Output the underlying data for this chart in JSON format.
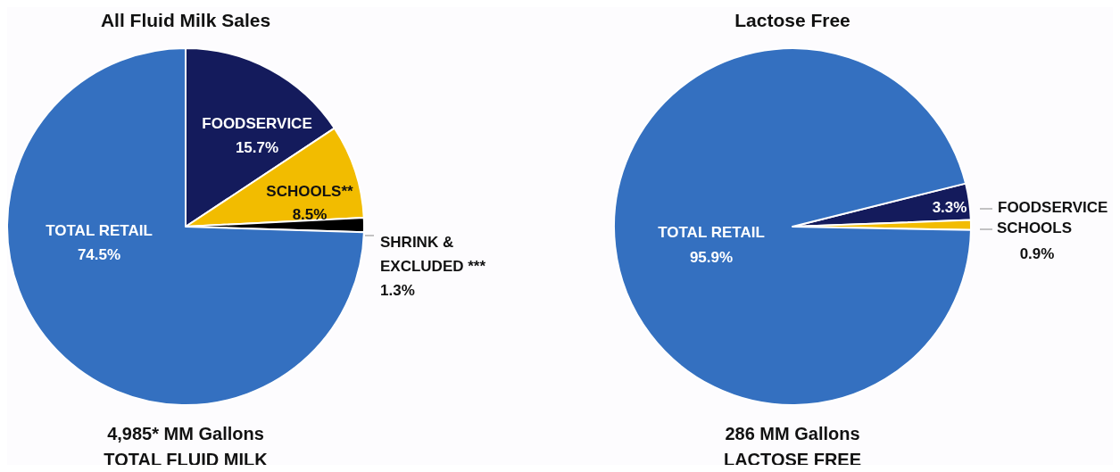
{
  "chart_data": [
    {
      "type": "pie",
      "title": "All Fluid Milk Sales",
      "categories": [
        "FOODSERVICE",
        "SCHOOLS**",
        "SHRINK & EXCLUDED ***",
        "TOTAL RETAIL"
      ],
      "values": [
        15.7,
        8.5,
        1.3,
        74.5
      ],
      "colors": [
        "#141b5c",
        "#f2bc00",
        "#000000",
        "#3470c0"
      ],
      "value_labels": [
        "15.7%",
        "8.5%",
        "1.3%",
        "74.5%"
      ],
      "annotations": [
        "4,985* MM Gallons",
        "TOTAL FLUID MILK"
      ]
    },
    {
      "type": "pie",
      "title": "Lactose Free",
      "categories": [
        "FOODSERVICE",
        "SCHOOLS",
        "TOTAL RETAIL"
      ],
      "values": [
        3.3,
        0.9,
        95.9
      ],
      "colors": [
        "#141b5c",
        "#f2bc00",
        "#3470c0"
      ],
      "value_labels": [
        "3.3%",
        "0.9%",
        "95.9%"
      ],
      "annotations": [
        "286 MM Gallons",
        "LACTOSE FREE"
      ]
    }
  ]
}
